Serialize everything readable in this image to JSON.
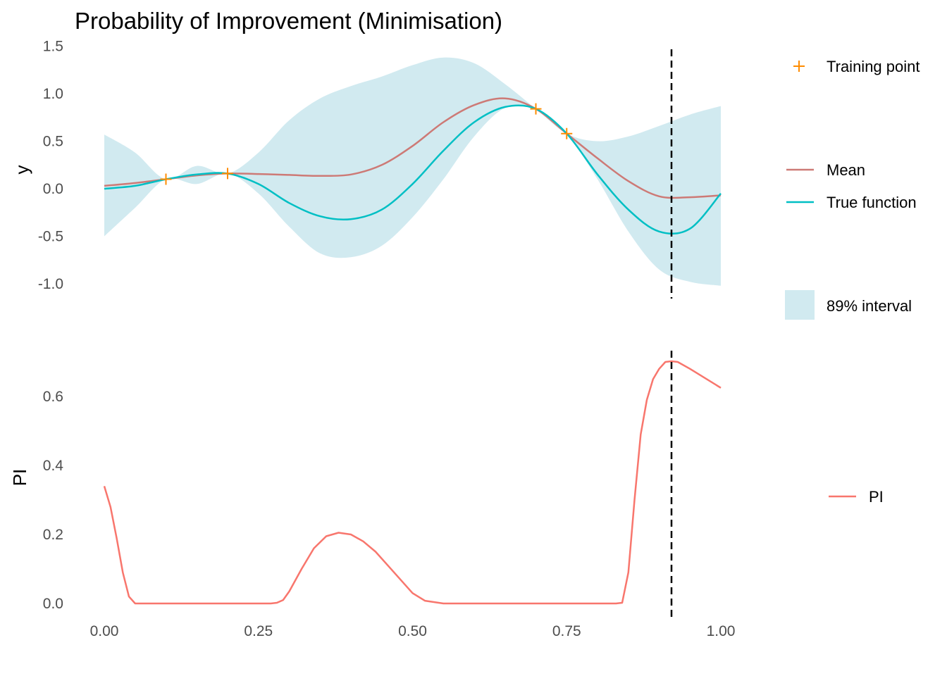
{
  "chart_data": [
    {
      "type": "line",
      "title": "Probability of Improvement (Minimisation)",
      "xlabel": "",
      "ylabel": "y",
      "xlim": [
        0,
        1
      ],
      "ylim": [
        -1.0,
        1.5
      ],
      "x_ticks": [
        "0.00",
        "0.25",
        "0.50",
        "0.75",
        "1.00"
      ],
      "y_ticks": [
        "1.5",
        "1.0",
        "0.5",
        "0.0",
        "-0.5",
        "-1.0"
      ],
      "grid": false,
      "legend_placement": "right",
      "vline_x": 0.92,
      "x": [
        0,
        0.05,
        0.1,
        0.15,
        0.2,
        0.25,
        0.3,
        0.35,
        0.4,
        0.45,
        0.5,
        0.55,
        0.6,
        0.65,
        0.7,
        0.75,
        0.8,
        0.85,
        0.9,
        0.95,
        1.0
      ],
      "series": [
        {
          "name": "Mean",
          "color": "#cd7a76",
          "values": [
            0.03,
            0.06,
            0.1,
            0.14,
            0.16,
            0.155,
            0.145,
            0.135,
            0.15,
            0.25,
            0.45,
            0.7,
            0.88,
            0.95,
            0.84,
            0.58,
            0.32,
            0.08,
            -0.08,
            -0.09,
            -0.07
          ]
        },
        {
          "name": "True function",
          "color": "#00bfc4",
          "values": [
            0.0,
            0.03,
            0.1,
            0.15,
            0.16,
            0.05,
            -0.15,
            -0.29,
            -0.32,
            -0.22,
            0.05,
            0.4,
            0.7,
            0.86,
            0.84,
            0.58,
            0.15,
            -0.22,
            -0.45,
            -0.42,
            -0.05
          ]
        },
        {
          "name": "89% interval",
          "type": "band",
          "color": "#d1eaf0",
          "lower": [
            -0.5,
            -0.2,
            0.1,
            0.05,
            0.16,
            -0.05,
            -0.4,
            -0.68,
            -0.72,
            -0.6,
            -0.3,
            0.1,
            0.55,
            0.85,
            0.84,
            0.58,
            0.1,
            -0.45,
            -0.85,
            -0.98,
            -1.02
          ],
          "upper": [
            0.57,
            0.38,
            0.1,
            0.24,
            0.16,
            0.38,
            0.72,
            0.95,
            1.08,
            1.18,
            1.3,
            1.38,
            1.32,
            1.1,
            0.84,
            0.58,
            0.5,
            0.55,
            0.66,
            0.78,
            0.87
          ]
        }
      ],
      "points": {
        "name": "Training point",
        "color": "#ff8c00",
        "x": [
          0.1,
          0.2,
          0.7,
          0.75
        ],
        "y": [
          0.1,
          0.16,
          0.84,
          0.58
        ]
      }
    },
    {
      "type": "line",
      "title": "",
      "xlabel": "",
      "ylabel": "PI",
      "xlim": [
        0,
        1
      ],
      "ylim": [
        0,
        0.7
      ],
      "x_ticks": [
        "0.00",
        "0.25",
        "0.50",
        "0.75",
        "1.00"
      ],
      "y_ticks": [
        "0.6",
        "0.4",
        "0.2",
        "0.0"
      ],
      "grid": false,
      "legend_placement": "right",
      "vline_x": 0.92,
      "series": [
        {
          "name": "PI",
          "color": "#f8766d",
          "x": [
            0,
            0.01,
            0.02,
            0.03,
            0.04,
            0.05,
            0.1,
            0.2,
            0.27,
            0.28,
            0.29,
            0.3,
            0.32,
            0.34,
            0.36,
            0.38,
            0.4,
            0.42,
            0.44,
            0.46,
            0.48,
            0.5,
            0.52,
            0.55,
            0.6,
            0.7,
            0.8,
            0.83,
            0.84,
            0.85,
            0.86,
            0.87,
            0.88,
            0.89,
            0.9,
            0.91,
            0.92,
            0.93,
            0.95,
            1.0
          ],
          "values": [
            0.34,
            0.28,
            0.19,
            0.09,
            0.02,
            0.0,
            0.0,
            0.0,
            0.0,
            0.002,
            0.01,
            0.035,
            0.1,
            0.16,
            0.195,
            0.205,
            0.2,
            0.18,
            0.15,
            0.11,
            0.07,
            0.03,
            0.008,
            0.0,
            0.0,
            0.0,
            0.0,
            0.0,
            0.002,
            0.09,
            0.3,
            0.49,
            0.59,
            0.65,
            0.68,
            0.7,
            0.702,
            0.7,
            0.68,
            0.625
          ]
        }
      ]
    }
  ]
}
